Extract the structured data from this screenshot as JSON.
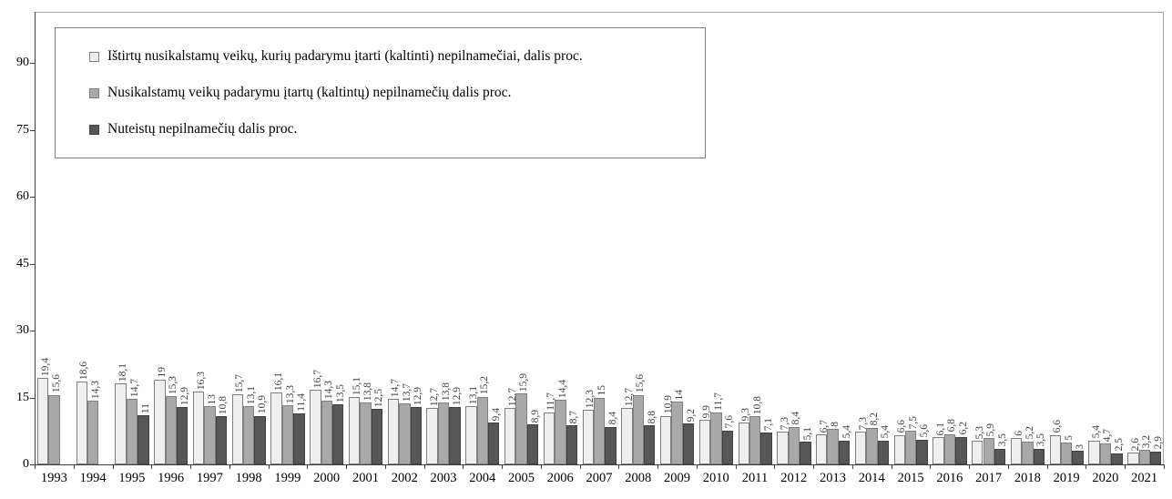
{
  "chart_data": {
    "type": "bar",
    "title": "",
    "xlabel": "",
    "ylabel": "",
    "grid": false,
    "legend_position": "top-left",
    "ylim": [
      0,
      100
    ],
    "yticks": [
      0,
      15,
      30,
      45,
      60,
      75,
      90
    ],
    "categories": [
      "1993",
      "1994",
      "1995",
      "1996",
      "1997",
      "1998",
      "1999",
      "2000",
      "2001",
      "2002",
      "2003",
      "2004",
      "2005",
      "2006",
      "2007",
      "2008",
      "2009",
      "2010",
      "2011",
      "2012",
      "2013",
      "2014",
      "2015",
      "2016",
      "2017",
      "2018",
      "2019",
      "2020",
      "2021"
    ],
    "series": [
      {
        "name": "Ištirtų nusikalstamų veikų, kurių padarymu įtarti (kaltinti) nepilnamečiai, dalis proc.",
        "color": "#efefef",
        "border_color": "#7f7f7f",
        "values": [
          19.4,
          18.6,
          18.1,
          19,
          16.3,
          15.7,
          16.1,
          16.7,
          15.1,
          14.7,
          12.7,
          13.1,
          12.7,
          11.7,
          12.3,
          12.7,
          10.9,
          9.9,
          9.3,
          7.3,
          6.7,
          7.3,
          6.6,
          6.1,
          5.3,
          6,
          6.6,
          5.4,
          2.6
        ],
        "labels": [
          "19,4",
          "18,6",
          "18,1",
          "19",
          "16,3",
          "15,7",
          "16,1",
          "16,7",
          "15,1",
          "14,7",
          "12,7",
          "13,1",
          "12,7",
          "11,7",
          "12,3",
          "12,7",
          "10,9",
          "9,9",
          "9,3",
          "7,3",
          "6,7",
          "7,3",
          "6,6",
          "6,1",
          "5,3",
          "6",
          "6,6",
          "5,4",
          "2,6"
        ]
      },
      {
        "name": "Nusikalstamų veikų padarymu įtartų (kaltintų) nepilnamečių dalis proc.",
        "color": "#a9a9a9",
        "border_color": "#7f7f7f",
        "values": [
          15.6,
          14.3,
          14.7,
          15.3,
          13,
          13.1,
          13.3,
          14.3,
          13.8,
          13.7,
          13.8,
          15.2,
          15.9,
          14.4,
          15,
          15.6,
          14,
          11.7,
          10.8,
          8.4,
          8,
          8.2,
          7.5,
          6.8,
          5.9,
          5.2,
          5,
          4.7,
          3.2
        ],
        "labels": [
          "15,6",
          "14,3",
          "14,7",
          "15,3",
          "13",
          "13,1",
          "13,3",
          "14,3",
          "13,8",
          "13,7",
          "13,8",
          "15,2",
          "15,9",
          "14,4",
          "15",
          "15,6",
          "14",
          "11,7",
          "10,8",
          "8,4",
          "8",
          "8,2",
          "7,5",
          "6,8",
          "5,9",
          "5,2",
          "5",
          "4,7",
          "3,2"
        ]
      },
      {
        "name": "Nuteistų nepilnamečių dalis proc.",
        "color": "#575757",
        "border_color": "#404040",
        "values": [
          null,
          null,
          11,
          12.9,
          10.8,
          10.9,
          11.4,
          13.5,
          12.5,
          12.9,
          12.9,
          9.4,
          8.9,
          8.7,
          8.4,
          8.8,
          9.2,
          7.6,
          7.1,
          5.1,
          5.4,
          5.4,
          5.6,
          6.2,
          3.5,
          3.5,
          3,
          2.5,
          2.9
        ],
        "labels": [
          "",
          "",
          "11",
          "12,9",
          "10,8",
          "10,9",
          "11,4",
          "13,5",
          "12,5",
          "12,9",
          "12,9",
          "9,4",
          "8,9",
          "8,7",
          "8,4",
          "8,8",
          "9,2",
          "7,6",
          "7,1",
          "5,1",
          "5,4",
          "5,4",
          "5,6",
          "6,2",
          "3,5",
          "3,5",
          "3",
          "2,5",
          "2,9"
        ]
      }
    ]
  }
}
